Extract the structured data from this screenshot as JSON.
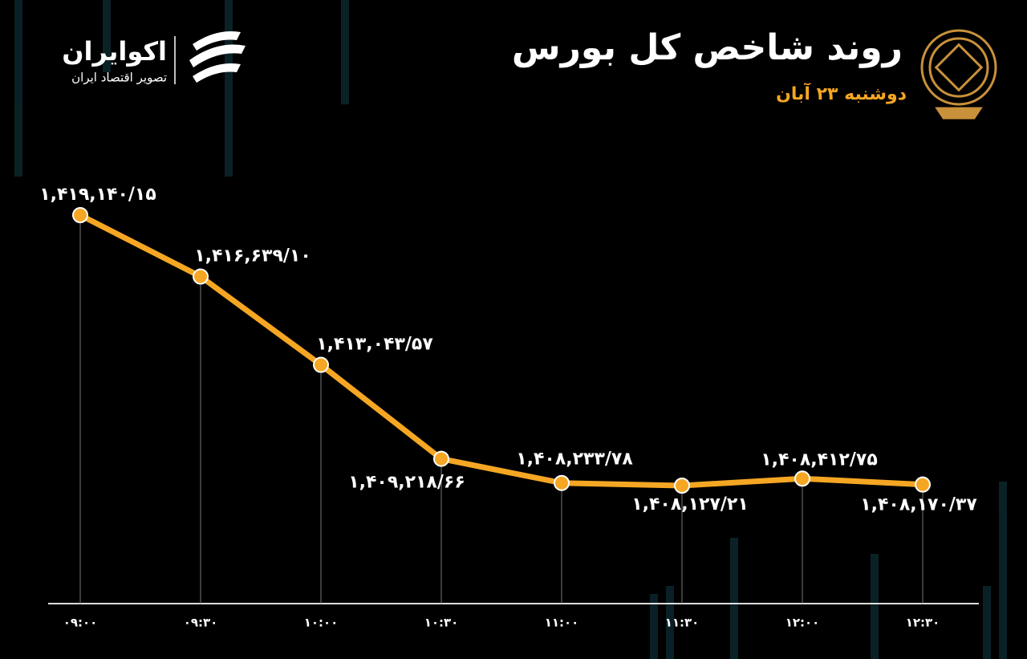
{
  "header": {
    "title": "روند شاخص کل بورس",
    "subtitle": "دوشنبه ۲۳ آبان",
    "brand": "اکوایران",
    "tagline": "تصویر اقتصاد ایران"
  },
  "chart_data": {
    "type": "line",
    "categories": [
      "۰۹:۰۰",
      "۰۹:۳۰",
      "۱۰:۰۰",
      "۱۰:۳۰",
      "۱۱:۰۰",
      "۱۱:۳۰",
      "۱۲:۰۰",
      "۱۲:۳۰"
    ],
    "series": [
      {
        "color": "#f5a623",
        "values": [
          1419140.15,
          1416639.1,
          1413043.57,
          1409218.66,
          1408233.78,
          1408127.21,
          1408412.75,
          1408170.37
        ],
        "value_labels": [
          "۱,۴۱۹,۱۴۰/۱۵",
          "۱,۴۱۶,۶۳۹/۱۰",
          "۱,۴۱۳,۰۴۳/۵۷",
          "۱,۴۰۹,۲۱۸/۶۶",
          "۱,۴۰۸,۲۳۳/۷۸",
          "۱,۴۰۸,۱۲۷/۲۱",
          "۱,۴۰۸,۴۱۲/۷۵",
          "۱,۴۰۸,۱۷۰/۳۷"
        ]
      }
    ]
  }
}
